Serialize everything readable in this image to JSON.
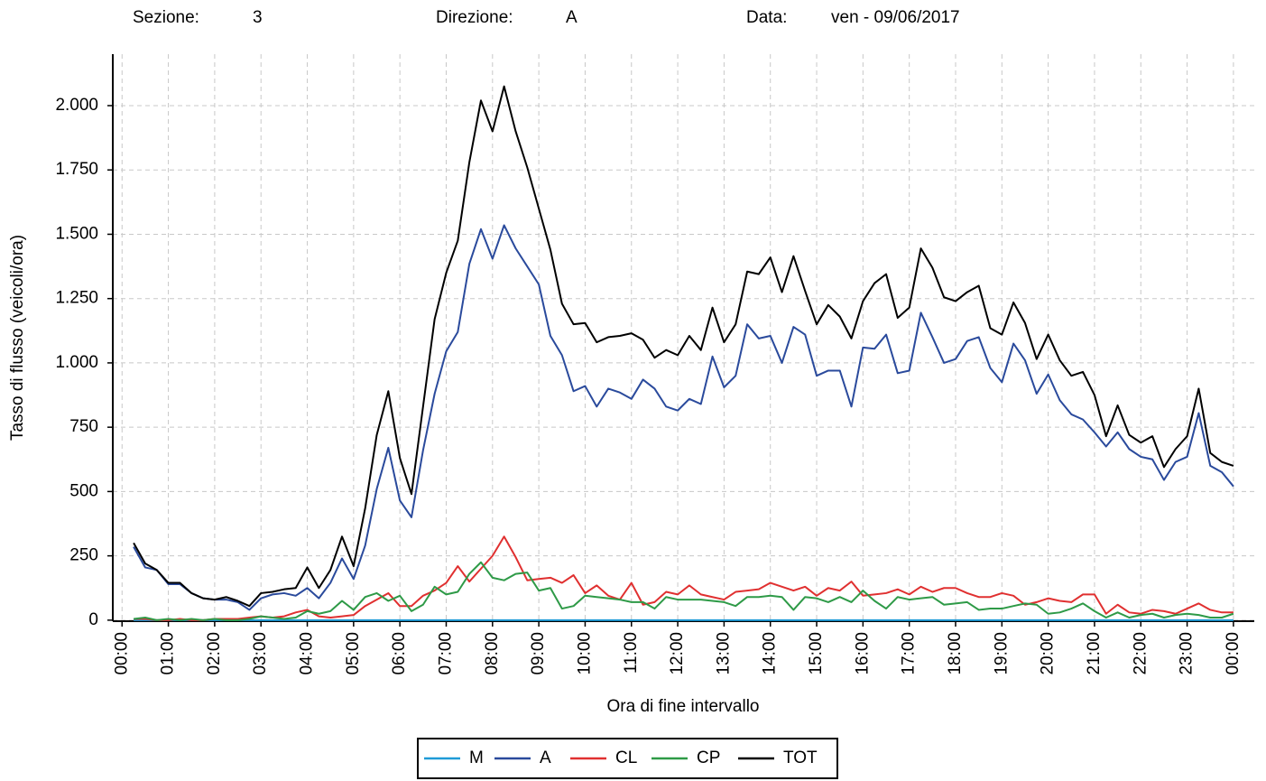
{
  "header": {
    "section_label": "Sezione:",
    "section": "3",
    "direction_label": "Direzione:",
    "direction": "A",
    "date_label": "Data:",
    "date": "ven - 09/06/2017"
  },
  "chart_data": {
    "type": "line",
    "xlabel": "Ora di fine intervallo",
    "ylabel": "Tasso di flusso (veicoli/ora)",
    "x": [
      15,
      30,
      45,
      60,
      75,
      90,
      105,
      120,
      135,
      150,
      165,
      180,
      195,
      210,
      225,
      240,
      255,
      270,
      285,
      300,
      315,
      330,
      345,
      360,
      375,
      390,
      405,
      420,
      435,
      450,
      465,
      480,
      495,
      510,
      525,
      540,
      555,
      570,
      585,
      600,
      615,
      630,
      645,
      660,
      675,
      690,
      705,
      720,
      735,
      750,
      765,
      780,
      795,
      810,
      825,
      840,
      855,
      870,
      885,
      900,
      915,
      930,
      945,
      960,
      975,
      990,
      1005,
      1020,
      1035,
      1050,
      1065,
      1080,
      1095,
      1110,
      1125,
      1140,
      1155,
      1170,
      1185,
      1200,
      1215,
      1230,
      1245,
      1260,
      1275,
      1290,
      1305,
      1320,
      1335,
      1350,
      1365,
      1380,
      1395,
      1410,
      1425,
      1440
    ],
    "xlim": [
      -12,
      1467
    ],
    "xticks": [
      {
        "value": 0,
        "label": "00:00"
      },
      {
        "value": 60,
        "label": "01:00"
      },
      {
        "value": 120,
        "label": "02:00"
      },
      {
        "value": 180,
        "label": "03:00"
      },
      {
        "value": 240,
        "label": "04:00"
      },
      {
        "value": 300,
        "label": "05:00"
      },
      {
        "value": 360,
        "label": "06:00"
      },
      {
        "value": 420,
        "label": "07:00"
      },
      {
        "value": 480,
        "label": "08:00"
      },
      {
        "value": 540,
        "label": "09:00"
      },
      {
        "value": 600,
        "label": "10:00"
      },
      {
        "value": 660,
        "label": "11:00"
      },
      {
        "value": 720,
        "label": "12:00"
      },
      {
        "value": 780,
        "label": "13:00"
      },
      {
        "value": 840,
        "label": "14:00"
      },
      {
        "value": 900,
        "label": "15:00"
      },
      {
        "value": 960,
        "label": "16:00"
      },
      {
        "value": 1020,
        "label": "17:00"
      },
      {
        "value": 1080,
        "label": "18:00"
      },
      {
        "value": 1140,
        "label": "19:00"
      },
      {
        "value": 1200,
        "label": "20:00"
      },
      {
        "value": 1260,
        "label": "21:00"
      },
      {
        "value": 1320,
        "label": "22:00"
      },
      {
        "value": 1380,
        "label": "23:00"
      },
      {
        "value": 1440,
        "label": "00:00"
      }
    ],
    "ylim": [
      -4,
      2200
    ],
    "yticks": [
      0,
      250,
      500,
      750,
      {
        "value": 1000,
        "label": "1.000"
      },
      {
        "value": 1250,
        "label": "1.250"
      },
      {
        "value": 1500,
        "label": "1.500"
      },
      {
        "value": 1750,
        "label": "1.750"
      },
      {
        "value": 2000,
        "label": "2.000"
      }
    ],
    "grid": true,
    "legend": "bottom",
    "series": [
      {
        "name": "M",
        "color": "#1f9bd7",
        "values": [
          0,
          0,
          0,
          0,
          0,
          0,
          0,
          0,
          0,
          0,
          0,
          0,
          0,
          0,
          0,
          0,
          0,
          0,
          0,
          0,
          0,
          0,
          0,
          0,
          0,
          0,
          0,
          0,
          0,
          0,
          0,
          0,
          0,
          0,
          0,
          0,
          0,
          0,
          0,
          0,
          0,
          0,
          0,
          0,
          0,
          0,
          0,
          0,
          0,
          0,
          0,
          0,
          0,
          0,
          0,
          0,
          0,
          0,
          0,
          0,
          0,
          0,
          0,
          0,
          0,
          0,
          0,
          0,
          0,
          0,
          0,
          0,
          0,
          0,
          0,
          0,
          0,
          0,
          0,
          0,
          0,
          0,
          0,
          0,
          0,
          0,
          0,
          0,
          0,
          0,
          0,
          0,
          0,
          0,
          0,
          0
        ]
      },
      {
        "name": "A",
        "color": "#2a4a9c",
        "values": [
          285,
          205,
          195,
          140,
          140,
          105,
          85,
          80,
          80,
          70,
          40,
          85,
          100,
          105,
          95,
          125,
          85,
          145,
          240,
          160,
          290,
          510,
          670,
          465,
          400,
          660,
          880,
          1045,
          1120,
          1385,
          1520,
          1405,
          1535,
          1445,
          1375,
          1305,
          1105,
          1030,
          890,
          910,
          830,
          900,
          885,
          860,
          935,
          900,
          830,
          815,
          860,
          840,
          1025,
          905,
          950,
          1150,
          1095,
          1105,
          1000,
          1140,
          1110,
          950,
          970,
          970,
          830,
          1060,
          1055,
          1110,
          960,
          970,
          1195,
          1100,
          1000,
          1015,
          1085,
          1100,
          980,
          925,
          1075,
          1010,
          880,
          955,
          855,
          800,
          780,
          730,
          675,
          730,
          665,
          635,
          625,
          545,
          615,
          635,
          805,
          600,
          575,
          520
        ]
      },
      {
        "name": "CL",
        "color": "#e03030",
        "values": [
          5,
          5,
          0,
          0,
          5,
          0,
          0,
          5,
          5,
          5,
          10,
          15,
          10,
          15,
          30,
          40,
          15,
          10,
          15,
          20,
          55,
          80,
          105,
          55,
          55,
          95,
          115,
          145,
          210,
          150,
          200,
          250,
          325,
          245,
          155,
          160,
          165,
          145,
          175,
          105,
          135,
          95,
          80,
          145,
          60,
          70,
          110,
          100,
          135,
          100,
          90,
          80,
          110,
          115,
          120,
          145,
          130,
          115,
          130,
          95,
          125,
          115,
          150,
          95,
          100,
          105,
          120,
          100,
          130,
          110,
          125,
          125,
          105,
          90,
          90,
          105,
          95,
          60,
          70,
          85,
          75,
          70,
          100,
          100,
          25,
          60,
          30,
          25,
          40,
          35,
          25,
          45,
          65,
          40,
          30,
          30
        ]
      },
      {
        "name": "CP",
        "color": "#2e9a47",
        "values": [
          5,
          10,
          0,
          5,
          0,
          5,
          0,
          5,
          0,
          0,
          5,
          15,
          10,
          5,
          10,
          35,
          25,
          35,
          75,
          40,
          90,
          105,
          75,
          95,
          35,
          60,
          130,
          100,
          110,
          180,
          225,
          165,
          155,
          180,
          185,
          115,
          125,
          45,
          55,
          95,
          90,
          85,
          80,
          70,
          70,
          45,
          90,
          80,
          80,
          80,
          75,
          70,
          55,
          90,
          90,
          95,
          90,
          40,
          90,
          85,
          70,
          90,
          70,
          115,
          75,
          45,
          90,
          80,
          85,
          90,
          60,
          65,
          70,
          40,
          45,
          45,
          55,
          65,
          60,
          25,
          30,
          45,
          65,
          35,
          10,
          30,
          10,
          20,
          25,
          10,
          20,
          25,
          20,
          10,
          10,
          25
        ]
      },
      {
        "name": "TOT",
        "color": "#000000",
        "values": [
          300,
          220,
          195,
          145,
          145,
          105,
          85,
          80,
          90,
          75,
          55,
          105,
          110,
          120,
          125,
          205,
          125,
          195,
          325,
          210,
          435,
          720,
          890,
          630,
          490,
          830,
          1170,
          1350,
          1475,
          1780,
          2020,
          1900,
          2075,
          1900,
          1760,
          1600,
          1440,
          1230,
          1150,
          1155,
          1080,
          1100,
          1105,
          1115,
          1090,
          1020,
          1050,
          1030,
          1105,
          1050,
          1215,
          1080,
          1150,
          1355,
          1345,
          1410,
          1275,
          1415,
          1280,
          1150,
          1225,
          1180,
          1095,
          1240,
          1310,
          1345,
          1175,
          1215,
          1445,
          1370,
          1255,
          1240,
          1275,
          1300,
          1135,
          1110,
          1235,
          1155,
          1015,
          1110,
          1010,
          950,
          965,
          875,
          715,
          835,
          720,
          690,
          715,
          595,
          665,
          715,
          900,
          650,
          615,
          600
        ]
      }
    ]
  }
}
